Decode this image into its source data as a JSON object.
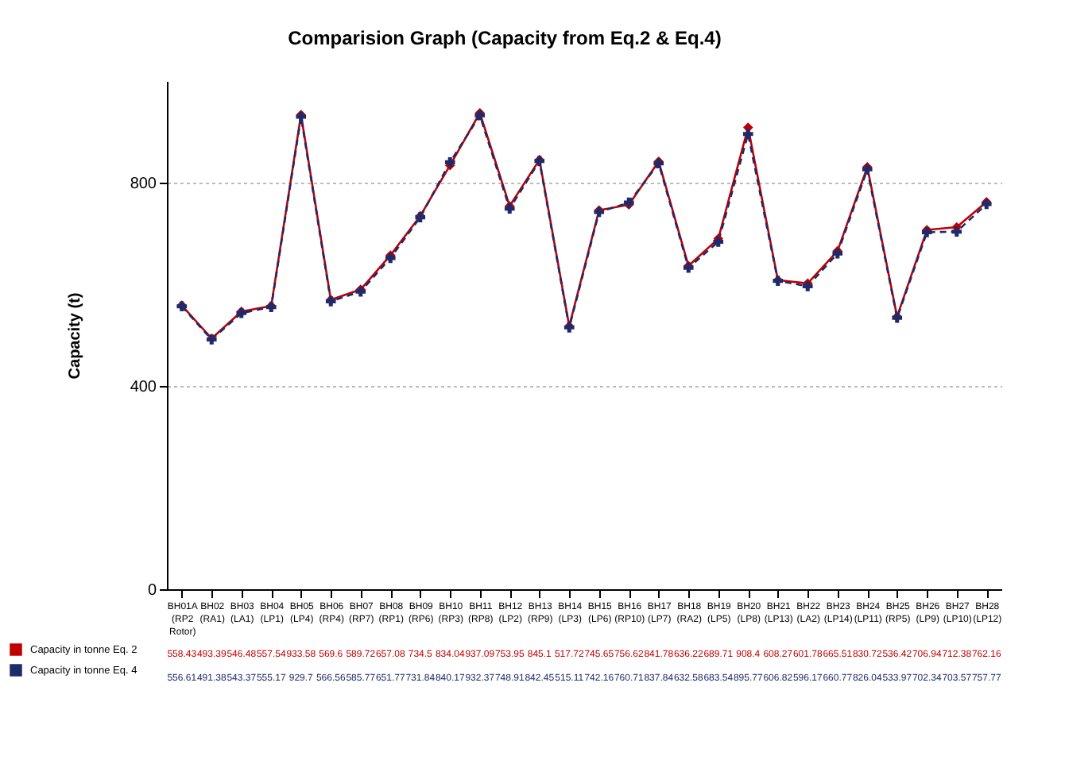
{
  "chart_data": {
    "type": "line",
    "title": "Comparision Graph (Capacity from Eq.2 & Eq.4)",
    "ylabel": "Capacity (t)",
    "categories": [
      "BH01A (RP2 Rotor)",
      "BH02 (RA1)",
      "BH03 (LA1)",
      "BH04 (LP1)",
      "BH05 (LP4)",
      "BH06 (RP4)",
      "BH07 (RP7)",
      "BH08 (RP1)",
      "BH09 (RP6)",
      "BH10 (RP3)",
      "BH11 (RP8)",
      "BH12 (LP2)",
      "BH13 (RP9)",
      "BH14 (LP3)",
      "BH15 (LP6)",
      "BH16 (RP10)",
      "BH17 (LP7)",
      "BH18 (RA2)",
      "BH19 (LP5)",
      "BH20 (LP8)",
      "BH21 (LP13)",
      "BH22 (LA2)",
      "BH23 (LP14)",
      "BH24 (LP11)",
      "BH25 (RP5)",
      "BH26 (LP9)",
      "BH27 (LP10)",
      "BH28 (LP12)"
    ],
    "series": [
      {
        "name": "Capacity in tonne Eq. 2",
        "color": "#c00000",
        "marker": "diamond",
        "line_style": "solid",
        "values": [
          558.43,
          493.39,
          546.48,
          557.54,
          933.58,
          569.6,
          589.72,
          657.08,
          734.5,
          834.04,
          937.09,
          753.95,
          845.1,
          517.72,
          745.65,
          756.62,
          841.78,
          636.22,
          689.71,
          908.4,
          608.27,
          601.78,
          665.51,
          830.72,
          536.42,
          706.94,
          712.38,
          762.16
        ]
      },
      {
        "name": "Capacity in tonne Eq. 4",
        "color": "#1f2a6b",
        "marker": "cross",
        "line_style": "dashed",
        "values": [
          556.61,
          491.38,
          543.37,
          555.17,
          929.7,
          566.56,
          585.77,
          651.77,
          731.84,
          840.17,
          932.37,
          748.91,
          842.45,
          515.11,
          742.16,
          760.71,
          837.84,
          632.58,
          683.54,
          895.77,
          606.82,
          596.17,
          660.77,
          826.04,
          533.97,
          702.34,
          703.57,
          757.77
        ]
      }
    ],
    "ylim": [
      0,
      1000
    ],
    "yticks": [
      0,
      400,
      800
    ],
    "grid": "y",
    "legend": "bottom left",
    "data_labels": true
  }
}
